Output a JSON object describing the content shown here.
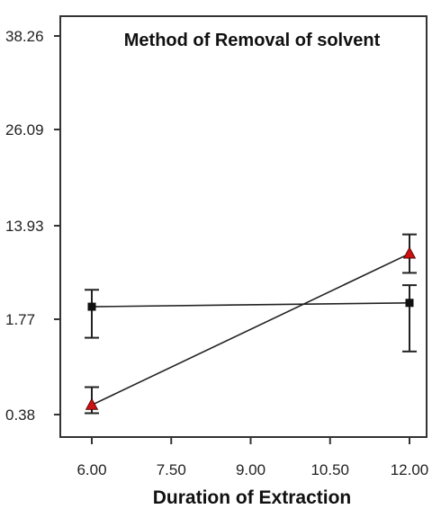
{
  "chart_data": {
    "type": "line",
    "title": "Method of Removal of solvent",
    "xlabel": "Duration of Extraction",
    "ylabel": "",
    "x_ticks": [
      "6.00",
      "7.50",
      "9.00",
      "10.50",
      "12.00"
    ],
    "y_ticks": [
      "0.38",
      "1.77",
      "13.93",
      "26.09",
      "38.26"
    ],
    "xlim": [
      6.0,
      12.0
    ],
    "y_scale_note": "tick labels are unevenly spaced values",
    "grid": false,
    "series": [
      {
        "marker": "square",
        "color": "#111111",
        "x": [
          6.0,
          12.0
        ],
        "y": [
          3.4,
          3.9
        ],
        "error_low": [
          1.5,
          1.3
        ],
        "error_high": [
          5.6,
          6.2
        ]
      },
      {
        "marker": "triangle",
        "color": "#cc1111",
        "x": [
          6.0,
          12.0
        ],
        "y": [
          0.52,
          10.3
        ],
        "error_low": [
          0.4,
          7.8
        ],
        "error_high": [
          0.78,
          12.8
        ]
      }
    ]
  }
}
